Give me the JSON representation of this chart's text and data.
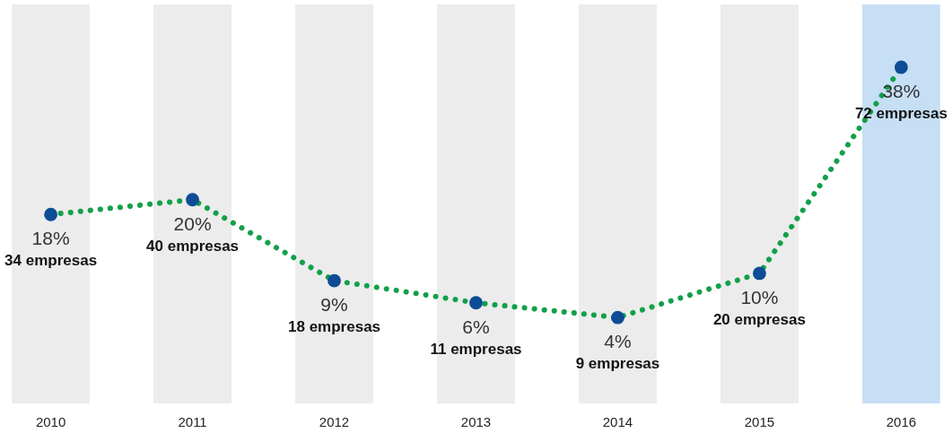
{
  "chart_data": {
    "type": "line",
    "categories": [
      "2010",
      "2011",
      "2012",
      "2013",
      "2014",
      "2015",
      "2016"
    ],
    "series": [
      {
        "color": "#12a04a",
        "line_style": "dotted",
        "marker": "none",
        "values": [
          18,
          20,
          9,
          6,
          4,
          10,
          38
        ]
      },
      {
        "type": "scatter",
        "color": "#0d4c97",
        "marker": "circle",
        "values": [
          18,
          20,
          9,
          6,
          4,
          10,
          38
        ],
        "value_labels": [
          "18%",
          "20%",
          "9%",
          "6%",
          "4%",
          "10%",
          "38%"
        ]
      }
    ],
    "annotations": [
      "34 empresas",
      "40 empresas",
      "18 empresas",
      "11 empresas",
      "9 empresas",
      "20 empresas",
      "72 empresas"
    ],
    "bands": [
      {
        "axis": "x",
        "from": "2010",
        "to": "2010",
        "color": "#ececec"
      },
      {
        "axis": "x",
        "from": "2011",
        "to": "2011",
        "color": "#ececec"
      },
      {
        "axis": "x",
        "from": "2012",
        "to": "2012",
        "color": "#ececec"
      },
      {
        "axis": "x",
        "from": "2013",
        "to": "2013",
        "color": "#ececec"
      },
      {
        "axis": "x",
        "from": "2014",
        "to": "2014",
        "color": "#ececec"
      },
      {
        "axis": "x",
        "from": "2015",
        "to": "2015",
        "color": "#ececec"
      },
      {
        "axis": "x",
        "from": "2016",
        "to": "2016",
        "color": "#c6dff5"
      }
    ]
  }
}
